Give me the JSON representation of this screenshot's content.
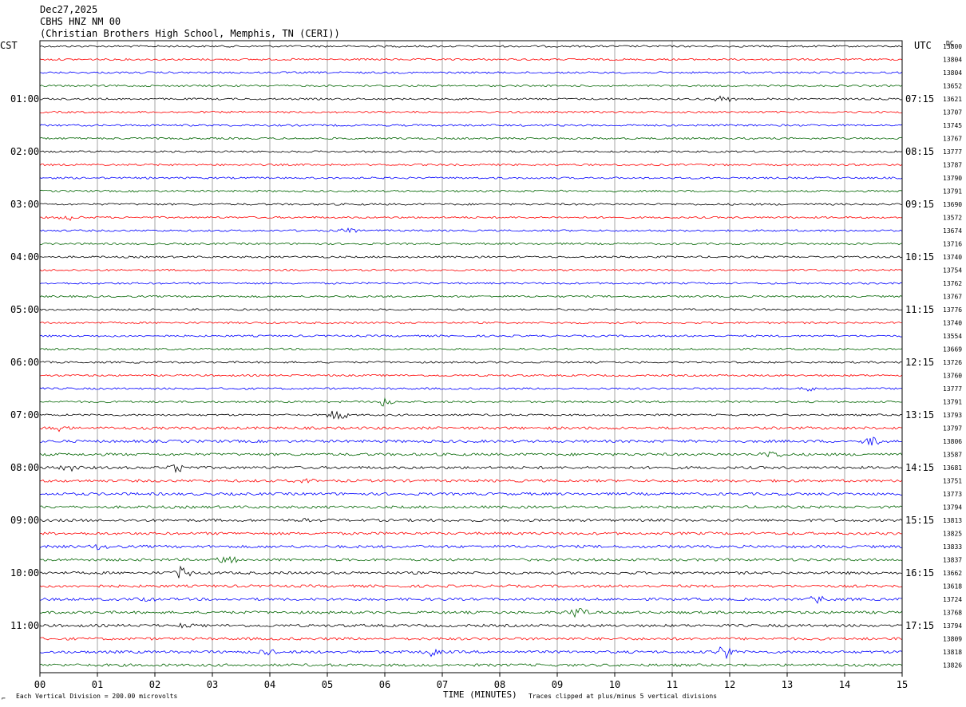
{
  "header": {
    "date": "Dec27,2025",
    "station": "CBHS HNZ NM 00",
    "location": "(Christian Brothers High School, Memphis, TN (CERI))",
    "left_zone": "CST",
    "right_zone": "UTC",
    "dc_label": "DC"
  },
  "footer": {
    "corner_mark": "⌐",
    "scale_note": "Each Vertical Division =  200.00 microvolts",
    "xlabel": "TIME (MINUTES)",
    "clip_note": "Traces clipped at plus/minus 5 vertical divisions"
  },
  "colors": {
    "trace_cycle": [
      "#000000",
      "#ff0000",
      "#0000ff",
      "#006400"
    ],
    "grid": "#808080",
    "frame": "#000000"
  },
  "chart_data": {
    "type": "line",
    "subtype": "helicorder",
    "xlabel": "TIME (MINUTES)",
    "xlim": [
      0,
      15
    ],
    "x_ticks": [
      "00",
      "01",
      "02",
      "03",
      "04",
      "05",
      "06",
      "07",
      "08",
      "09",
      "10",
      "11",
      "12",
      "13",
      "14",
      "15"
    ],
    "grid": true,
    "rows_per_hour": 4,
    "minutes_per_row": 15,
    "left_time_labels": [
      "01:00",
      "02:00",
      "03:00",
      "04:00",
      "05:00",
      "06:00",
      "07:00",
      "08:00",
      "09:00",
      "10:00",
      "11:00"
    ],
    "right_time_labels": [
      "07:15",
      "08:15",
      "09:15",
      "10:15",
      "11:15",
      "12:15",
      "13:15",
      "14:15",
      "15:15",
      "16:15",
      "17:15"
    ],
    "label_first_row": 4,
    "label_row_step": 4,
    "dc_values": [
      13800,
      13804,
      13804,
      13652,
      13621,
      13707,
      13745,
      13767,
      13777,
      13787,
      13790,
      13791,
      13690,
      13572,
      13674,
      13716,
      13740,
      13754,
      13762,
      13767,
      13776,
      13740,
      13554,
      13669,
      13726,
      13760,
      13777,
      13791,
      13793,
      13797,
      13806,
      13587,
      13681,
      13751,
      13773,
      13794,
      13813,
      13825,
      13833,
      13837,
      13662,
      13618,
      13724,
      13768,
      13794,
      13809,
      13818,
      13826
    ],
    "events": [
      {
        "row": 28,
        "minute": 5.2,
        "amp": 0.9
      },
      {
        "row": 27,
        "minute": 6.0,
        "amp": 0.8
      },
      {
        "row": 30,
        "minute": 14.5,
        "amp": 0.8
      },
      {
        "row": 31,
        "minute": 12.75,
        "amp": 0.7
      },
      {
        "row": 29,
        "minute": 0.3,
        "amp": 0.6
      },
      {
        "row": 32,
        "minute": 0.5,
        "amp": 0.6
      },
      {
        "row": 32,
        "minute": 2.4,
        "amp": 0.6
      },
      {
        "row": 40,
        "minute": 2.45,
        "amp": 1.0
      },
      {
        "row": 39,
        "minute": 3.25,
        "amp": 0.6
      },
      {
        "row": 43,
        "minute": 9.35,
        "amp": 0.8
      },
      {
        "row": 46,
        "minute": 11.9,
        "amp": 1.0
      },
      {
        "row": 46,
        "minute": 6.8,
        "amp": 0.7
      },
      {
        "row": 46,
        "minute": 3.9,
        "amp": 0.6
      },
      {
        "row": 42,
        "minute": 1.85,
        "amp": 0.5
      },
      {
        "row": 42,
        "minute": 13.55,
        "amp": 0.5
      },
      {
        "row": 4,
        "minute": 11.9,
        "amp": 0.5
      },
      {
        "row": 26,
        "minute": 13.4,
        "amp": 0.5
      },
      {
        "row": 13,
        "minute": 0.5,
        "amp": 0.4
      },
      {
        "row": 14,
        "minute": 5.4,
        "amp": 0.4
      },
      {
        "row": 33,
        "minute": 4.6,
        "amp": 0.4
      },
      {
        "row": 38,
        "minute": 1.0,
        "amp": 0.4
      },
      {
        "row": 36,
        "minute": 4.7,
        "amp": 0.3
      },
      {
        "row": 44,
        "minute": 2.5,
        "amp": 0.4
      }
    ]
  }
}
